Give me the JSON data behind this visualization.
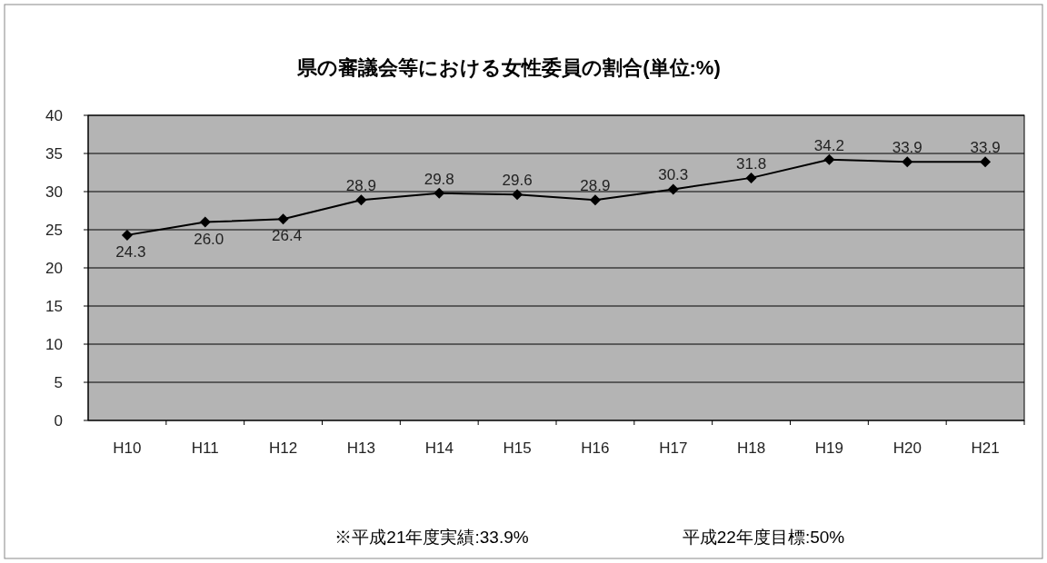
{
  "chart_data": {
    "type": "line",
    "title": "県の審議会等における女性委員の割合(単位:%)",
    "categories": [
      "H10",
      "H11",
      "H12",
      "H13",
      "H14",
      "H15",
      "H16",
      "H17",
      "H18",
      "H19",
      "H20",
      "H21"
    ],
    "series": [
      {
        "color": "#000000",
        "values": [
          24.3,
          26.0,
          26.4,
          28.9,
          29.8,
          29.6,
          28.9,
          30.3,
          31.8,
          34.2,
          33.9,
          33.9
        ],
        "value_labels": [
          "24.3",
          "26.0",
          "26.4",
          "28.9",
          "29.8",
          "29.6",
          "28.9",
          "30.3",
          "31.8",
          "34.2",
          "33.9",
          "33.9"
        ]
      }
    ],
    "ylim": [
      0,
      40
    ],
    "yticks": [
      0,
      5,
      10,
      15,
      20,
      25,
      30,
      35,
      40
    ],
    "grid": "y",
    "marker": "diamond",
    "line_style": "solid",
    "annotations": [
      "※平成21年度実績:33.9%",
      "平成22年度目標:50%"
    ]
  }
}
